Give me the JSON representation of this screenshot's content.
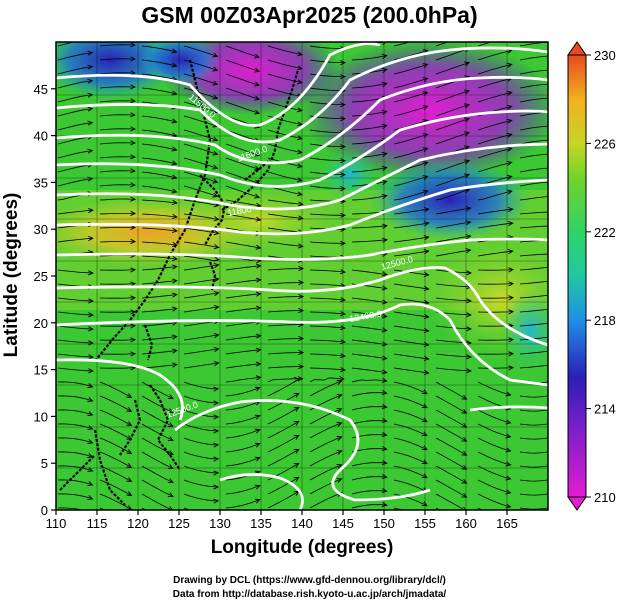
{
  "title": "GSM 00Z03Apr2025 (200.0hPa)",
  "xlabel": "Longitude (degrees)",
  "ylabel": "Latitude  (degrees)",
  "credit_line1": "Drawing by DCL (https://www.gfd-dennou.org/library/dcl/)",
  "credit_line2": "Data from http://database.rish.kyoto-u.ac.jp/arch/jmadata/",
  "chart_data": {
    "type": "heatmap",
    "title": "GSM 00Z03Apr2025 (200.0hPa)",
    "xlabel": "Longitude (degrees)",
    "ylabel": "Latitude  (degrees)",
    "xlim": [
      110,
      170
    ],
    "ylim": [
      0,
      50
    ],
    "xticks": [
      110,
      115,
      120,
      125,
      130,
      135,
      140,
      145,
      150,
      155,
      160,
      165
    ],
    "yticks": [
      0,
      5,
      10,
      15,
      20,
      25,
      30,
      35,
      40,
      45
    ],
    "grid": true,
    "colorbar": {
      "ticks": [
        210,
        214,
        218,
        222,
        226,
        230
      ],
      "min": 210,
      "max": 230,
      "position": "right"
    },
    "contour_labels": [
      "11500.0",
      "11600.0",
      "11800",
      "12500.0",
      "12400.0",
      "12500.0"
    ],
    "overlays": [
      "streamlines",
      "geopotential height contours",
      "coastlines"
    ]
  },
  "colors": {
    "colorbar_stops": [
      "#e11ed2",
      "#2a1fb5",
      "#1f8fe6",
      "#2fd466",
      "#6fd42a",
      "#f2b020",
      "#e84a20"
    ],
    "contour": "#ffffff",
    "streamline": "#000000",
    "coastline": "#000000"
  }
}
